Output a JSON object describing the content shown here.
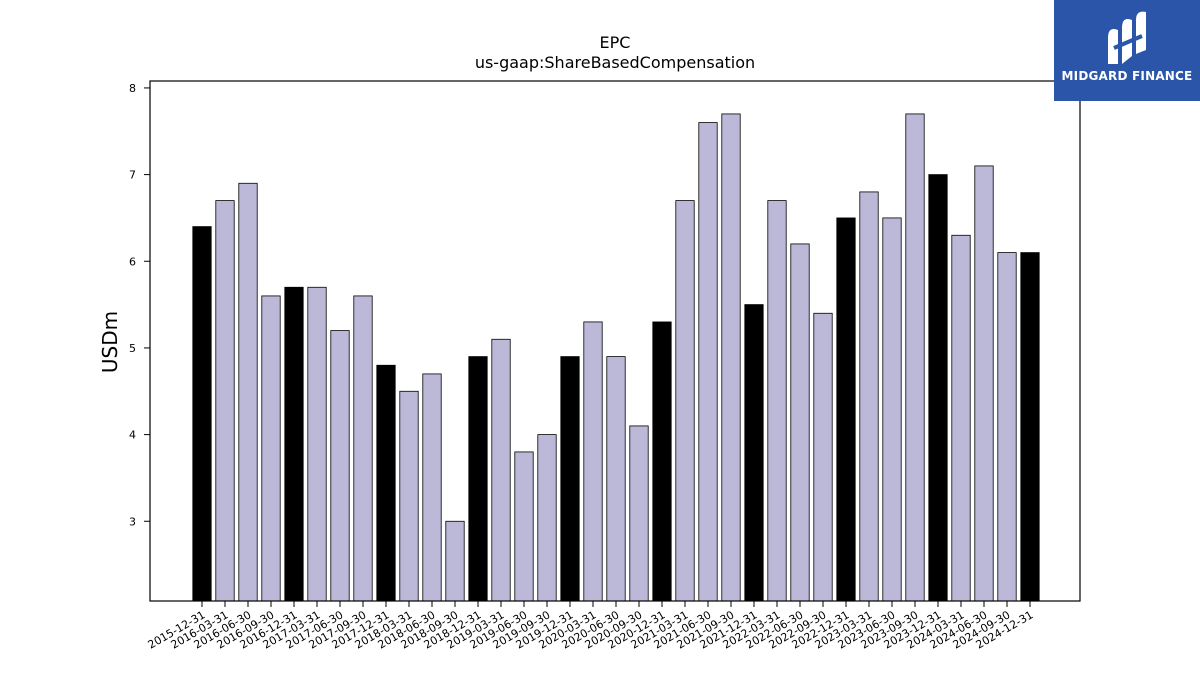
{
  "chart_data": {
    "type": "bar",
    "title": "EPC",
    "subtitle": "us-gaap:ShareBasedCompensation",
    "xlabel": "",
    "ylabel": "USDm",
    "ylim": [
      2.08,
      8.08
    ],
    "yticks": [
      3,
      4,
      5,
      6,
      7,
      8
    ],
    "grid": false,
    "categories": [
      "2015-12-31",
      "2016-03-31",
      "2016-06-30",
      "2016-09-30",
      "2016-12-31",
      "2017-03-31",
      "2017-06-30",
      "2017-09-30",
      "2017-12-31",
      "2018-03-31",
      "2018-06-30",
      "2018-09-30",
      "2018-12-31",
      "2019-03-31",
      "2019-06-30",
      "2019-09-30",
      "2019-12-31",
      "2020-03-31",
      "2020-06-30",
      "2020-09-30",
      "2020-12-31",
      "2021-03-31",
      "2021-06-30",
      "2021-09-30",
      "2021-12-31",
      "2022-03-31",
      "2022-06-30",
      "2022-09-30",
      "2022-12-31",
      "2023-03-31",
      "2023-06-30",
      "2023-09-30",
      "2023-12-31",
      "2024-03-31",
      "2024-06-30",
      "2024-09-30",
      "2024-12-31"
    ],
    "values": [
      6.4,
      6.7,
      6.9,
      5.6,
      5.7,
      5.7,
      5.2,
      5.6,
      4.8,
      4.5,
      4.7,
      3.0,
      4.9,
      5.1,
      3.8,
      4.0,
      4.9,
      5.3,
      4.9,
      4.1,
      5.3,
      6.7,
      7.6,
      7.7,
      5.5,
      6.7,
      6.2,
      5.4,
      6.5,
      6.8,
      6.5,
      7.7,
      7.0,
      6.3,
      7.1,
      6.1,
      6.1
    ],
    "colors": {
      "year_end": "#000000",
      "quarter": "#bcb9d8",
      "edge": "#000000"
    }
  },
  "logo": {
    "text": "MIDGARD FINANCE",
    "background": "#2a55a9"
  }
}
